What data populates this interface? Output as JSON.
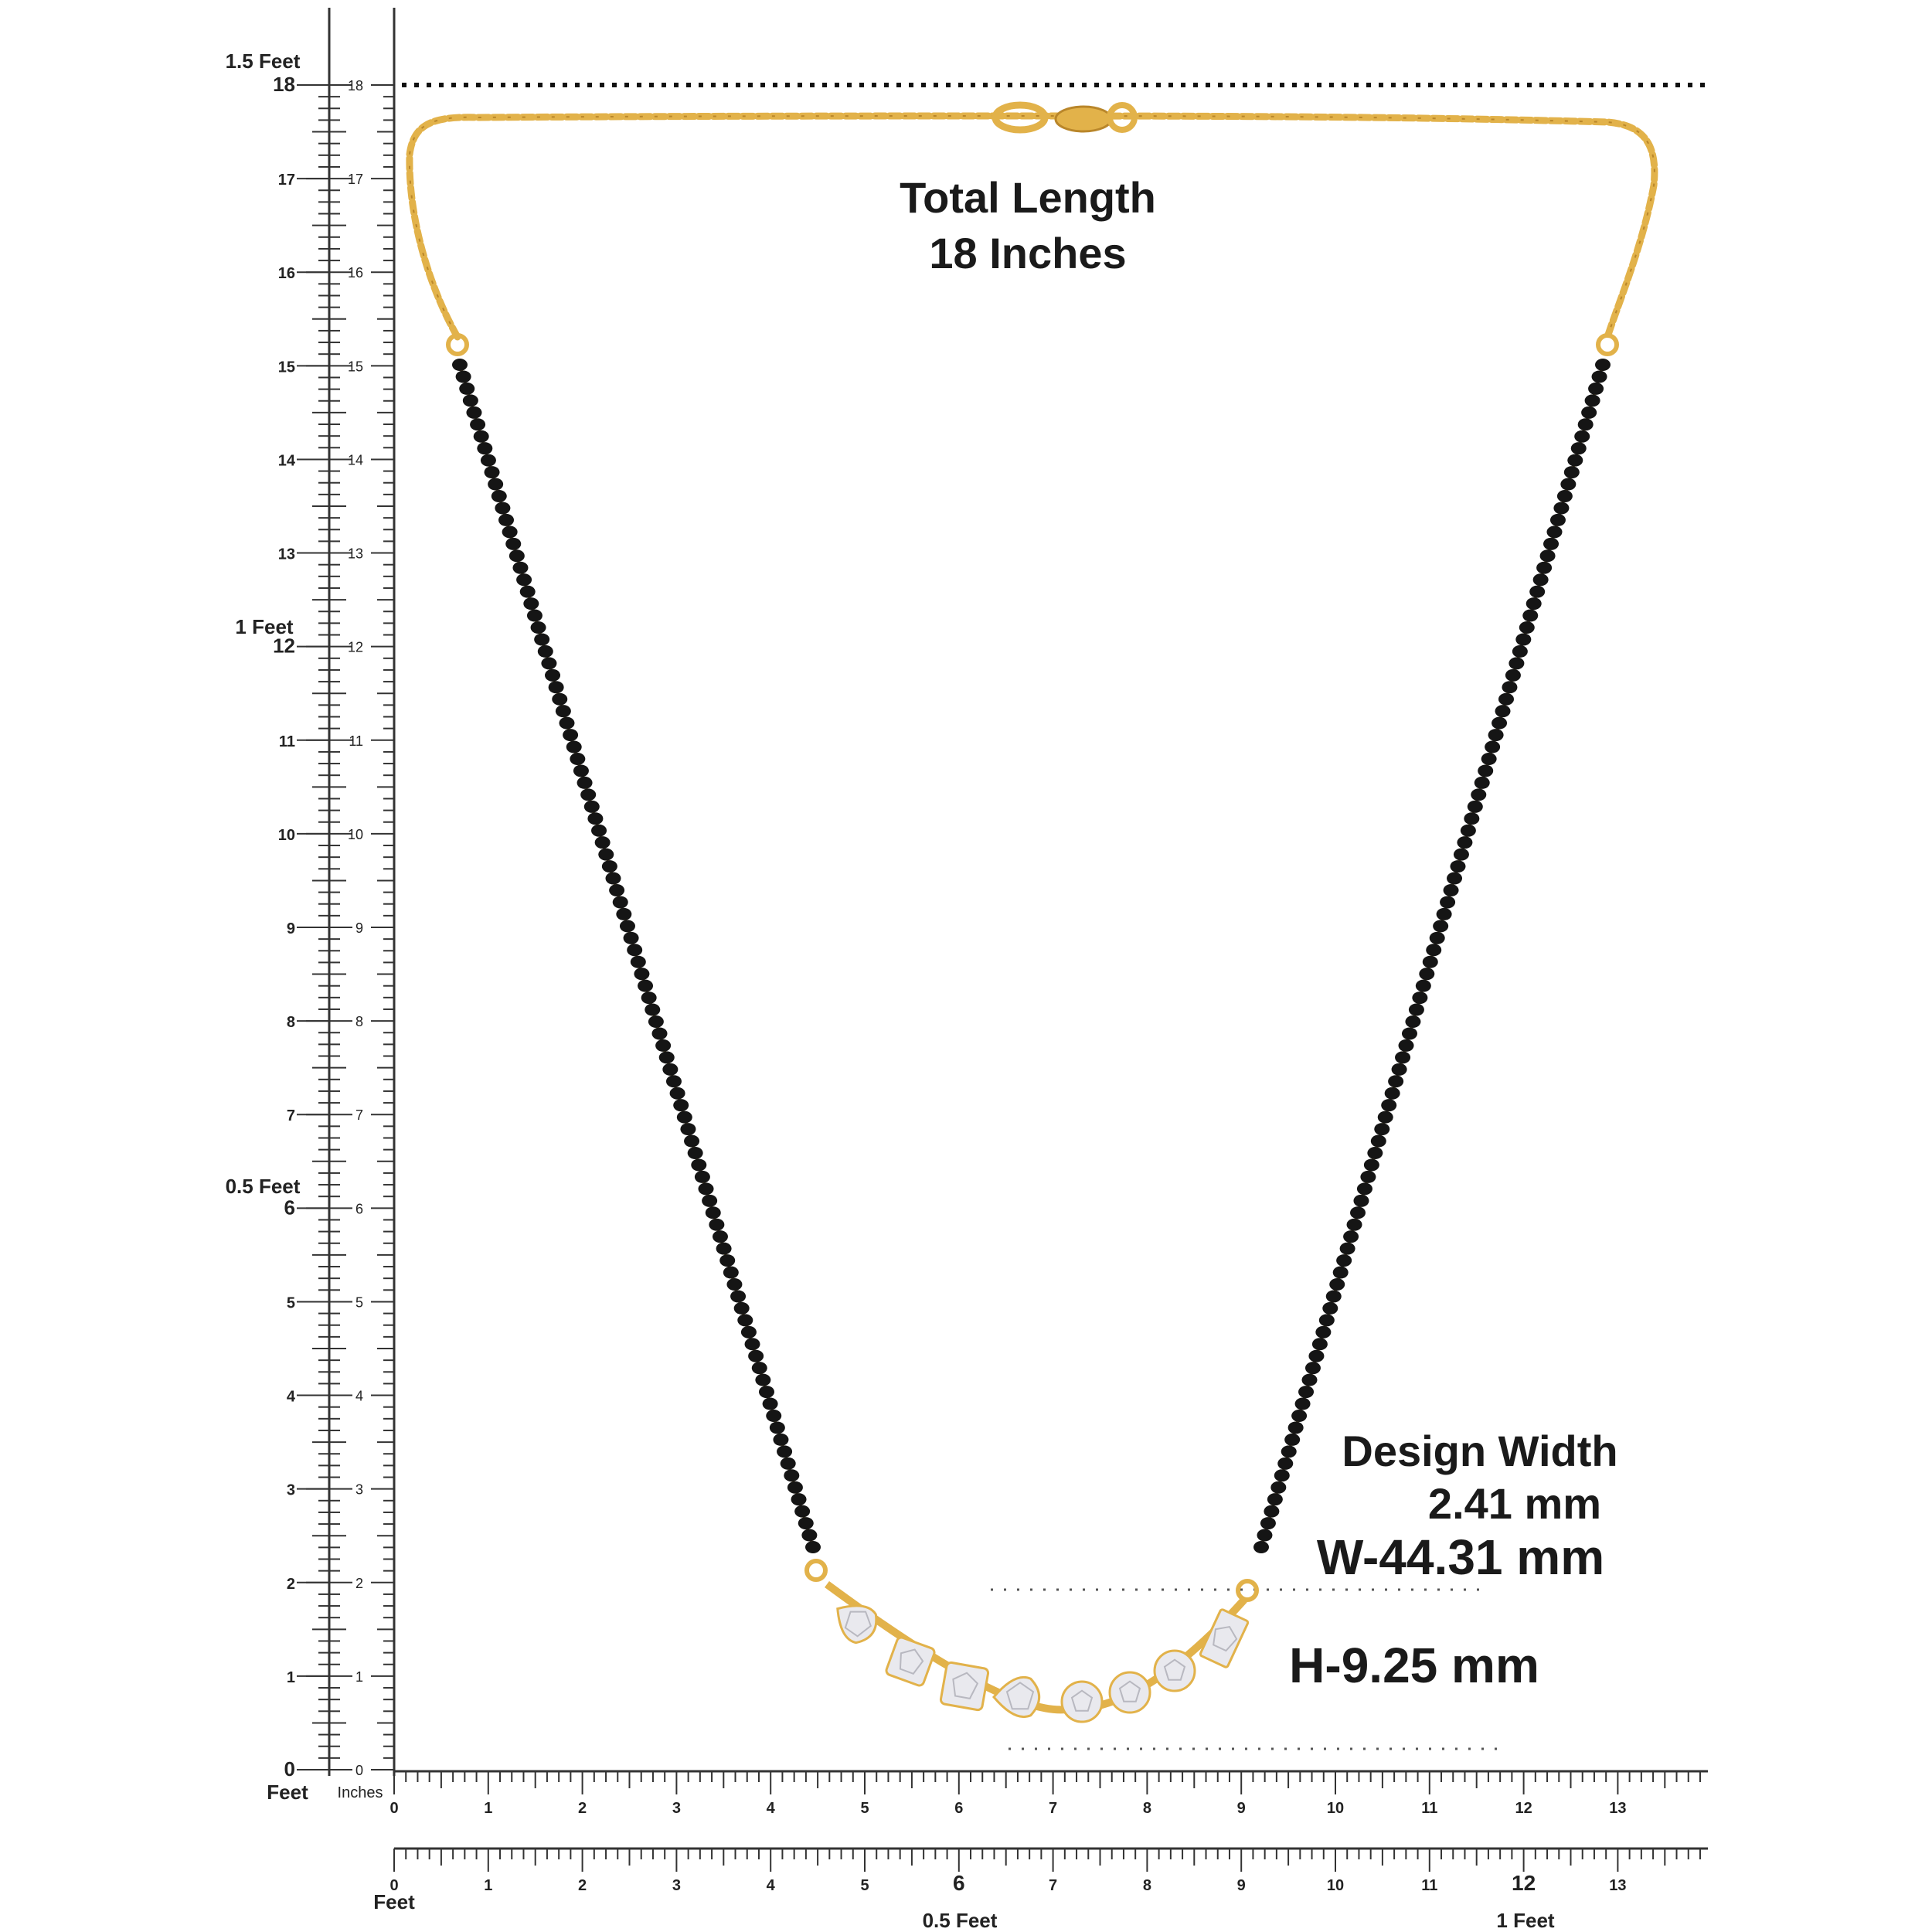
{
  "colors": {
    "gold": "#e2b24a",
    "gold_dark": "#b9862a",
    "bead": "#151515",
    "ruler": "#333333",
    "stone": "#e9e9ee"
  },
  "scale": {
    "left_feet_unit": "Feet",
    "left_inch_unit": "Inches",
    "bottom_feet_unit": "Feet",
    "left_feet_labels": [
      "1.5 Feet",
      "1 Feet",
      "0.5 Feet"
    ],
    "bottom_feet_labels": [
      "0.5 Feet",
      "1 Feet"
    ]
  },
  "annotations": {
    "total_length_line1": "Total Length",
    "total_length_line2": "18 Inches",
    "design_width_line1": "Design Width",
    "design_width_line2": "2.41 mm",
    "width": "W-44.31 mm",
    "height": "H-9.25 mm"
  }
}
